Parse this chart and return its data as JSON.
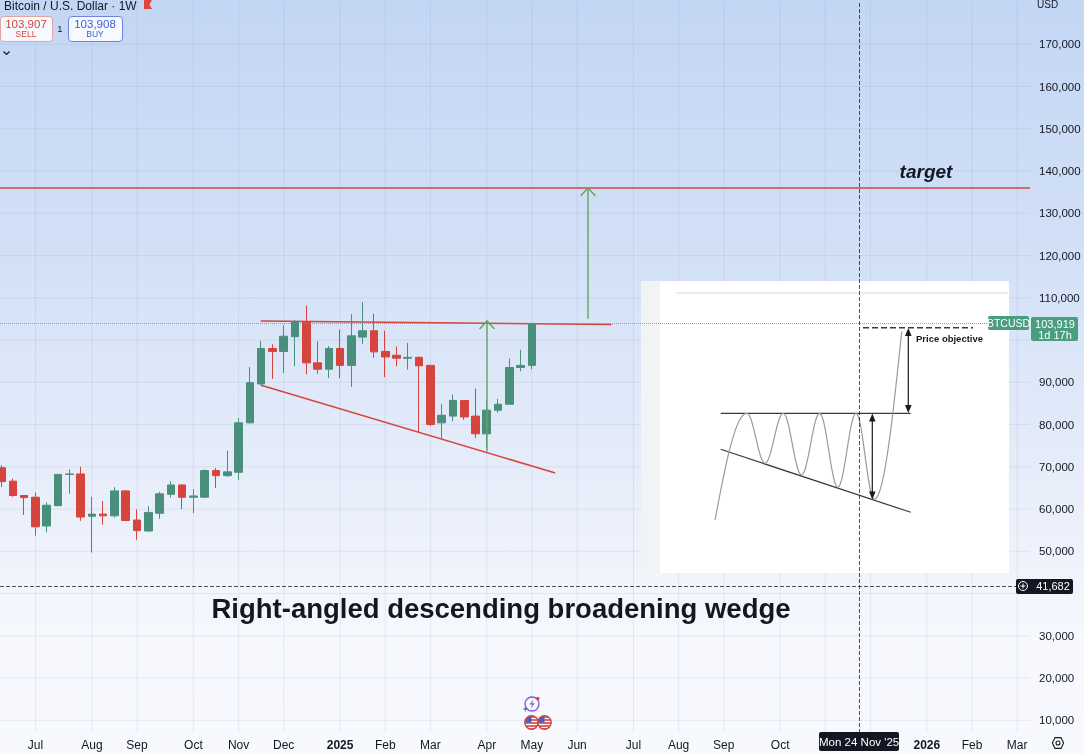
{
  "chart_data": {
    "type": "candlestick",
    "title": "Bitcoin / U.S. Dollar · 1W",
    "ylabel": "USD",
    "x": [
      "2024-06-10",
      "2024-06-17",
      "2024-06-24",
      "2024-07-01",
      "2024-07-08",
      "2024-07-15",
      "2024-07-22",
      "2024-07-29",
      "2024-08-05",
      "2024-08-12",
      "2024-08-19",
      "2024-08-26",
      "2024-09-02",
      "2024-09-09",
      "2024-09-16",
      "2024-09-23",
      "2024-09-30",
      "2024-10-07",
      "2024-10-14",
      "2024-10-21",
      "2024-10-28",
      "2024-11-04",
      "2024-11-11",
      "2024-11-18",
      "2024-11-25",
      "2024-12-02",
      "2024-12-09",
      "2024-12-16",
      "2024-12-23",
      "2024-12-30",
      "2025-01-06",
      "2025-01-13",
      "2025-01-20",
      "2025-01-27",
      "2025-02-03",
      "2025-02-10",
      "2025-02-17",
      "2025-02-24",
      "2025-03-03",
      "2025-03-10",
      "2025-03-17",
      "2025-03-24",
      "2025-03-31",
      "2025-04-07",
      "2025-04-14",
      "2025-04-21",
      "2025-04-28",
      "2025-05-05"
    ],
    "ohlc": [
      [
        69800,
        70400,
        65200,
        66500
      ],
      [
        66600,
        67200,
        62900,
        63200
      ],
      [
        63200,
        63300,
        58600,
        62700
      ],
      [
        62800,
        63900,
        53700,
        55800
      ],
      [
        56000,
        61600,
        54500,
        60900
      ],
      [
        60800,
        68300,
        60700,
        68200
      ],
      [
        68200,
        69400,
        63600,
        68300
      ],
      [
        68300,
        70000,
        57200,
        58100
      ],
      [
        58300,
        62900,
        49700,
        58800
      ],
      [
        58800,
        61900,
        56300,
        58400
      ],
      [
        58400,
        65200,
        58000,
        64300
      ],
      [
        64300,
        64500,
        57200,
        57300
      ],
      [
        57400,
        59900,
        52700,
        54900
      ],
      [
        54800,
        60700,
        54700,
        59200
      ],
      [
        59000,
        64100,
        57700,
        63600
      ],
      [
        63500,
        66600,
        62700,
        65700
      ],
      [
        65700,
        65800,
        60000,
        62800
      ],
      [
        62800,
        64700,
        59000,
        63100
      ],
      [
        62800,
        69400,
        62700,
        69100
      ],
      [
        69100,
        69700,
        65000,
        67900
      ],
      [
        67900,
        73800,
        67600,
        68800
      ],
      [
        68700,
        81500,
        66900,
        80400
      ],
      [
        80400,
        93600,
        80300,
        89900
      ],
      [
        89600,
        99800,
        89500,
        98000
      ],
      [
        98000,
        99000,
        90800,
        97300
      ],
      [
        97300,
        103500,
        92200,
        100900
      ],
      [
        100800,
        104800,
        93800,
        104300
      ],
      [
        104300,
        108200,
        91900,
        94600
      ],
      [
        94600,
        99700,
        92000,
        93100
      ],
      [
        93100,
        98600,
        91000,
        98000
      ],
      [
        98000,
        102500,
        91000,
        94000
      ],
      [
        94000,
        106100,
        88900,
        101000
      ],
      [
        100700,
        109000,
        99100,
        102200
      ],
      [
        102200,
        106200,
        95800,
        97200
      ],
      [
        97300,
        102200,
        91200,
        96000
      ],
      [
        96400,
        98500,
        93800,
        95700
      ],
      [
        95700,
        99300,
        93000,
        95900
      ],
      [
        95900,
        96100,
        78200,
        93900
      ],
      [
        94000,
        94100,
        79600,
        80000
      ],
      [
        80400,
        84900,
        76700,
        82200
      ],
      [
        82000,
        87100,
        80800,
        85700
      ],
      [
        85700,
        85800,
        81100,
        81800
      ],
      [
        82000,
        88500,
        76800,
        77800
      ],
      [
        77800,
        85900,
        74500,
        83400
      ],
      [
        83400,
        86100,
        82800,
        84800
      ],
      [
        84800,
        95600,
        84700,
        93500
      ],
      [
        93500,
        97700,
        92600,
        94000
      ],
      [
        94000,
        104000,
        93100,
        103919
      ]
    ],
    "colors": [
      "#d5453e",
      "#d5453e",
      "#d5453e",
      "#d5453e",
      "#4a8f7b",
      "#4a8f7b",
      "#4a8f7b",
      "#d5453e",
      "#4a8f7b",
      "#d5453e",
      "#4a8f7b",
      "#d5453e",
      "#d5453e",
      "#4a8f7b",
      "#4a8f7b",
      "#4a8f7b",
      "#d5453e",
      "#4a8f7b",
      "#4a8f7b",
      "#d5453e",
      "#4a8f7b",
      "#4a8f7b",
      "#4a8f7b",
      "#4a8f7b",
      "#d5453e",
      "#4a8f7b",
      "#4a8f7b",
      "#d5453e",
      "#d5453e",
      "#4a8f7b",
      "#d5453e",
      "#4a8f7b",
      "#4a8f7b",
      "#d5453e",
      "#d5453e",
      "#d5453e",
      "#4a8f7b",
      "#d5453e",
      "#d5453e",
      "#4a8f7b",
      "#4a8f7b",
      "#d5453e",
      "#d5453e",
      "#4a8f7b",
      "#4a8f7b",
      "#4a8f7b",
      "#4a8f7b",
      "#4a8f7b"
    ],
    "series": [
      {
        "type": "line",
        "color": "#d5453e",
        "x": [
          "2024-11-18",
          "2025-06-23"
        ],
        "values": [
          104500,
          103700
        ]
      },
      {
        "type": "line",
        "color": "#d5453e",
        "x": [
          "2024-11-18",
          "2025-05-19"
        ],
        "values": [
          89300,
          68600
        ]
      }
    ],
    "xlim": [
      "2024-06-09",
      "2026-03-10"
    ],
    "ylim": [
      7000,
      180000
    ],
    "xticks": [
      {
        "value": "2024-07-01",
        "label": "Jul"
      },
      {
        "value": "2024-08-05",
        "label": "Aug"
      },
      {
        "value": "2024-09-02",
        "label": "Sep"
      },
      {
        "value": "2024-10-07",
        "label": "Oct"
      },
      {
        "value": "2024-11-04",
        "label": "Nov"
      },
      {
        "value": "2024-12-02",
        "label": "Dec"
      },
      {
        "value": "2025-01-06",
        "label": "2025"
      },
      {
        "value": "2025-02-03",
        "label": "Feb"
      },
      {
        "value": "2025-03-03",
        "label": "Mar"
      },
      {
        "value": "2025-04-07",
        "label": "Apr"
      },
      {
        "value": "2025-05-05",
        "label": "May"
      },
      {
        "value": "2025-06-02",
        "label": "Jun"
      },
      {
        "value": "2025-07-07",
        "label": "Jul"
      },
      {
        "value": "2025-08-04",
        "label": "Aug"
      },
      {
        "value": "2025-09-01",
        "label": "Sep"
      },
      {
        "value": "2025-10-06",
        "label": "Oct"
      },
      {
        "value": "2025-11-03",
        "label": null
      },
      {
        "value": "2025-12-01",
        "label": null
      },
      {
        "value": "2026-01-05",
        "label": "2026"
      },
      {
        "value": "2026-02-02",
        "label": "Feb"
      },
      {
        "value": "2026-03-02",
        "label": "Mar"
      }
    ],
    "yticks": [
      {
        "value": 10000,
        "label": "10,000"
      },
      {
        "value": 20000,
        "label": "20,000"
      },
      {
        "value": 30000,
        "label": "30,000"
      },
      {
        "value": 40000,
        "label": null
      },
      {
        "value": 50000,
        "label": "50,000"
      },
      {
        "value": 60000,
        "label": "60,000"
      },
      {
        "value": 70000,
        "label": "70,000"
      },
      {
        "value": 80000,
        "label": "80,000"
      },
      {
        "value": 90000,
        "label": "90,000"
      },
      {
        "value": 100000,
        "label": null
      },
      {
        "value": 110000,
        "label": "110,000"
      },
      {
        "value": 120000,
        "label": "120,000"
      },
      {
        "value": 130000,
        "label": "130,000"
      },
      {
        "value": 140000,
        "label": "140,000"
      },
      {
        "value": 150000,
        "label": "150,000"
      },
      {
        "value": 160000,
        "label": "160,000"
      },
      {
        "value": 170000,
        "label": "170,000"
      }
    ],
    "grid": true,
    "ref_lines": [
      {
        "axis": "y",
        "value": 136000,
        "label": "target",
        "color": "#d5453e",
        "line_style": "solid"
      },
      {
        "axis": "y",
        "value": 103919,
        "label": "BTCUSD",
        "color": "#4a9e7f",
        "line_style": "dotted"
      },
      {
        "axis": "y",
        "value": 41682,
        "label": "41,682",
        "color": "#131722",
        "line_style": "dashed"
      },
      {
        "axis": "x",
        "value": "2025-11-24",
        "label": "Mon 24 Nov '25",
        "color": "#131722",
        "line_style": "dashed"
      }
    ],
    "annotations": [
      "103,907",
      "SELL",
      "1",
      "103,908",
      "BUY",
      "103,919",
      "1d 17h",
      "Right-angled descending broadening wedge",
      "Price objective"
    ]
  }
}
